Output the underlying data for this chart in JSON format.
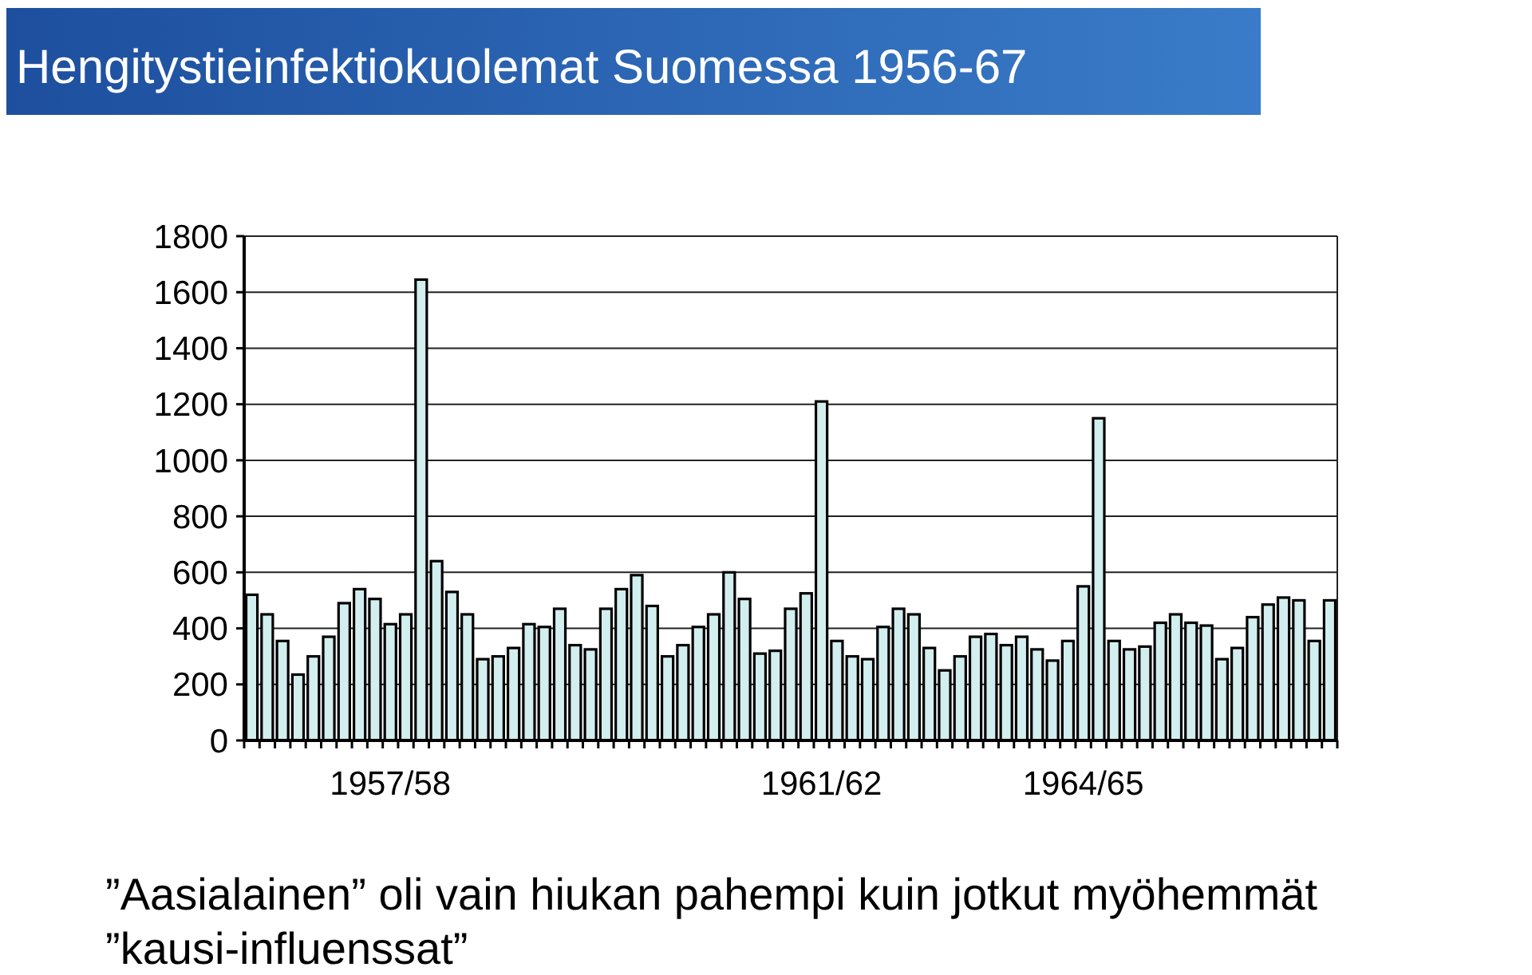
{
  "chart_data": {
    "type": "bar",
    "title": "Hengitystieinfektiokuolemat Suomessa 1956-67",
    "categories": [
      null,
      null,
      null,
      null,
      null,
      null,
      null,
      null,
      null,
      "1957/58",
      null,
      null,
      null,
      null,
      null,
      null,
      null,
      null,
      null,
      null,
      null,
      null,
      null,
      null,
      null,
      null,
      null,
      null,
      null,
      null,
      null,
      null,
      null,
      null,
      null,
      null,
      null,
      "1961/62",
      null,
      null,
      null,
      null,
      null,
      null,
      null,
      null,
      null,
      null,
      null,
      null,
      null,
      null,
      null,
      null,
      "1964/65",
      null,
      null,
      null,
      null,
      null,
      null,
      null,
      null,
      null,
      null,
      null,
      null,
      null,
      null,
      null,
      null
    ],
    "values": [
      520,
      450,
      355,
      235,
      300,
      370,
      490,
      540,
      505,
      415,
      450,
      1645,
      640,
      530,
      450,
      290,
      300,
      330,
      415,
      405,
      470,
      340,
      325,
      470,
      540,
      590,
      480,
      300,
      340,
      405,
      450,
      600,
      505,
      310,
      320,
      470,
      525,
      1210,
      355,
      300,
      290,
      405,
      470,
      450,
      330,
      250,
      300,
      370,
      380,
      340,
      370,
      325,
      285,
      355,
      550,
      1150,
      355,
      325,
      335,
      420,
      450,
      420,
      410,
      290,
      330,
      440,
      485,
      510,
      500,
      355,
      500
    ],
    "color": "#d2eeee",
    "ylim": [
      0,
      1800
    ],
    "yticks": [
      0,
      200,
      400,
      600,
      800,
      1000,
      1200,
      1400,
      1600,
      1800
    ],
    "grid": "y",
    "annotations": [
      "”Aasialainen” oli vain hiukan pahempi kuin jotkut myöhemmät ”kausi-influenssat”"
    ]
  }
}
